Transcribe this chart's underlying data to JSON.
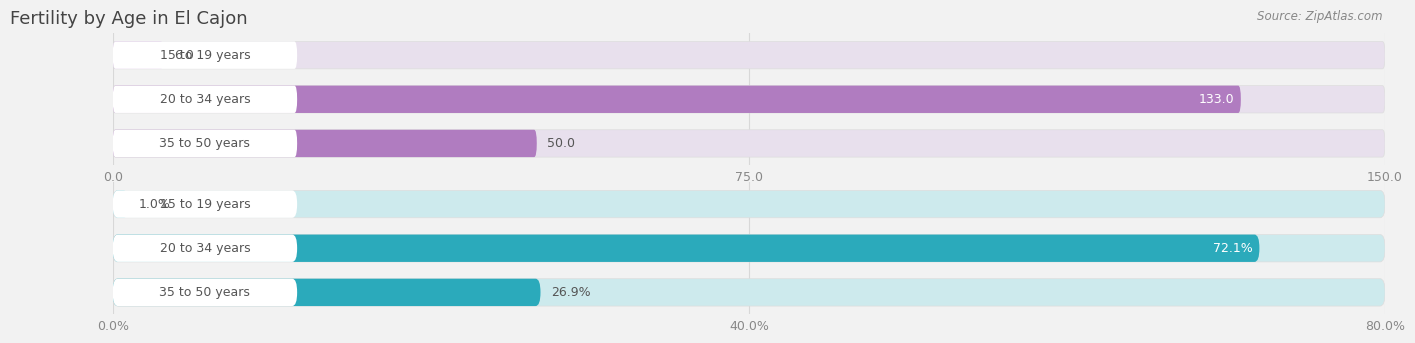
{
  "title": "Fertility by Age in El Cajon",
  "source": "Source: ZipAtlas.com",
  "top_chart": {
    "categories": [
      "15 to 19 years",
      "20 to 34 years",
      "35 to 50 years"
    ],
    "values": [
      6.0,
      133.0,
      50.0
    ],
    "bar_colors": [
      "#c9a8d8",
      "#b07cc0",
      "#b07cc0"
    ],
    "bar_bg_color": "#e8e0ed",
    "xlim": [
      0,
      150.0
    ],
    "xticks": [
      0.0,
      75.0,
      150.0
    ],
    "xtick_labels": [
      "0.0",
      "75.0",
      "150.0"
    ],
    "is_percent": false
  },
  "bottom_chart": {
    "categories": [
      "15 to 19 years",
      "20 to 34 years",
      "35 to 50 years"
    ],
    "values": [
      1.0,
      72.1,
      26.9
    ],
    "bar_colors": [
      "#7ecfda",
      "#2baabb",
      "#2baabb"
    ],
    "bar_bg_color": "#cdeaed",
    "xlim": [
      0,
      80.0
    ],
    "xticks": [
      0.0,
      40.0,
      80.0
    ],
    "xtick_labels": [
      "0.0%",
      "40.0%",
      "80.0%"
    ],
    "is_percent": true
  },
  "label_fontsize": 9,
  "value_fontsize": 9,
  "title_fontsize": 13,
  "source_fontsize": 8.5,
  "background_color": "#f2f2f2",
  "bar_container_color": "#e8e8e8",
  "label_bg_color": "#ffffff",
  "label_text_color": "#555555",
  "title_color": "#444444",
  "grid_color": "#d8d8d8",
  "value_color_inside": "#ffffff",
  "value_color_outside": "#555555"
}
